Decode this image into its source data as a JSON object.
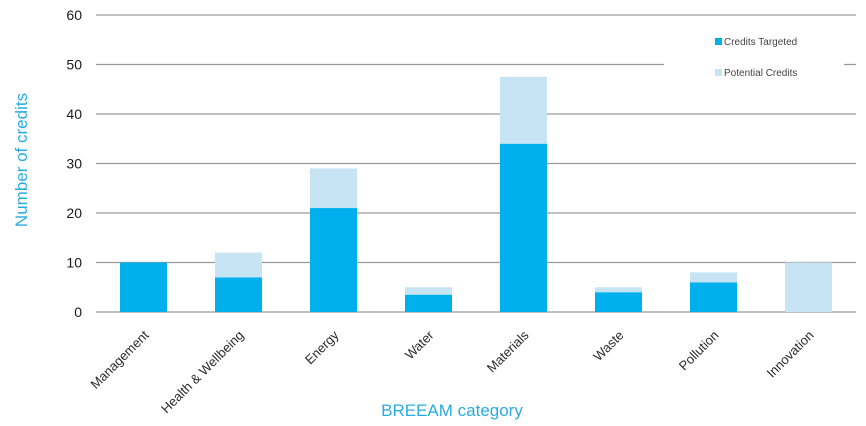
{
  "colors": {
    "targeted": "#00b0ec",
    "potential": "#c6e4f3",
    "grid": "#9a9a9a",
    "axis_title": "#29abe2"
  },
  "chart_data": {
    "type": "bar",
    "stacked": true,
    "title": "",
    "xlabel": "BREEAM category",
    "ylabel": "Number of credits",
    "ylim": [
      0,
      60
    ],
    "yticks": [
      0,
      10,
      20,
      30,
      40,
      50,
      60
    ],
    "grid": true,
    "legend_position": "top-right",
    "categories": [
      "Management",
      "Health & Wellbeing",
      "Energy",
      "Water",
      "Materials",
      "Waste",
      "Pollution",
      "Innovation"
    ],
    "series": [
      {
        "name": "Credits Targeted",
        "values": [
          10,
          7,
          21,
          3.5,
          34,
          4,
          6,
          0
        ]
      },
      {
        "name": "Potential Credits",
        "values": [
          0,
          5,
          8,
          1.5,
          13.5,
          1,
          2,
          10
        ]
      }
    ]
  }
}
